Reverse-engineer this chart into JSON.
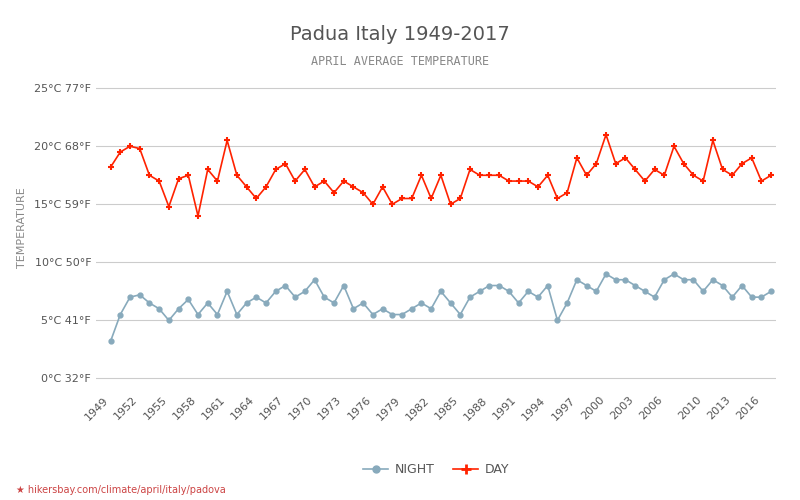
{
  "title": "Padua Italy 1949-2017",
  "subtitle": "APRIL AVERAGE TEMPERATURE",
  "ylabel": "TEMPERATURE",
  "xlabel_url": "hikersbay.com/climate/april/italy/padova",
  "years": [
    1949,
    1950,
    1951,
    1952,
    1953,
    1954,
    1955,
    1956,
    1957,
    1958,
    1959,
    1960,
    1961,
    1962,
    1963,
    1964,
    1965,
    1966,
    1967,
    1968,
    1969,
    1970,
    1971,
    1972,
    1973,
    1974,
    1975,
    1976,
    1977,
    1978,
    1979,
    1980,
    1981,
    1982,
    1983,
    1984,
    1985,
    1986,
    1987,
    1988,
    1989,
    1990,
    1991,
    1992,
    1993,
    1994,
    1995,
    1996,
    1997,
    1998,
    1999,
    2000,
    2001,
    2002,
    2003,
    2004,
    2005,
    2006,
    2007,
    2008,
    2009,
    2010,
    2011,
    2012,
    2013,
    2014,
    2015,
    2016,
    2017
  ],
  "day_temps": [
    18.2,
    19.5,
    20.0,
    19.8,
    17.5,
    17.0,
    14.8,
    17.2,
    17.5,
    14.0,
    18.0,
    17.0,
    20.5,
    17.5,
    16.5,
    15.5,
    16.5,
    18.0,
    18.5,
    17.0,
    18.0,
    16.5,
    17.0,
    16.0,
    17.0,
    16.5,
    16.0,
    15.0,
    16.5,
    15.0,
    15.5,
    15.5,
    17.5,
    15.5,
    17.5,
    15.0,
    15.5,
    18.0,
    17.5,
    17.5,
    17.5,
    17.0,
    17.0,
    17.0,
    16.5,
    17.5,
    15.5,
    16.0,
    19.0,
    17.5,
    18.5,
    21.0,
    18.5,
    19.0,
    18.0,
    17.0,
    18.0,
    17.5,
    20.0,
    18.5,
    17.5,
    17.0,
    20.5,
    18.0,
    17.5,
    18.5,
    19.0,
    17.0,
    17.5
  ],
  "night_temps": [
    3.2,
    5.5,
    7.0,
    7.2,
    6.5,
    6.0,
    5.0,
    6.0,
    6.8,
    5.5,
    6.5,
    5.5,
    7.5,
    5.5,
    6.5,
    7.0,
    6.5,
    7.5,
    8.0,
    7.0,
    7.5,
    8.5,
    7.0,
    6.5,
    8.0,
    6.0,
    6.5,
    5.5,
    6.0,
    5.5,
    5.5,
    6.0,
    6.5,
    6.0,
    7.5,
    6.5,
    5.5,
    7.0,
    7.5,
    8.0,
    8.0,
    7.5,
    6.5,
    7.5,
    7.0,
    8.0,
    5.0,
    6.5,
    8.5,
    8.0,
    7.5,
    9.0,
    8.5,
    8.5,
    8.0,
    7.5,
    7.0,
    8.5,
    9.0,
    8.5,
    8.5,
    7.5,
    8.5,
    8.0,
    7.0,
    8.0,
    7.0,
    7.0,
    7.5
  ],
  "day_color": "#ff2200",
  "night_color": "#88aabc",
  "background_color": "#ffffff",
  "grid_color": "#cccccc",
  "yticks_c": [
    0,
    5,
    10,
    15,
    20,
    25
  ],
  "yticks_f": [
    32,
    41,
    50,
    59,
    68,
    77
  ],
  "ylim": [
    -1,
    27
  ],
  "title_color": "#555555",
  "subtitle_color": "#888888",
  "ylabel_color": "#888888",
  "xtick_years": [
    1949,
    1952,
    1955,
    1958,
    1961,
    1964,
    1967,
    1970,
    1973,
    1976,
    1979,
    1982,
    1985,
    1988,
    1991,
    1994,
    1997,
    2000,
    2003,
    2006,
    2010,
    2013,
    2016
  ]
}
